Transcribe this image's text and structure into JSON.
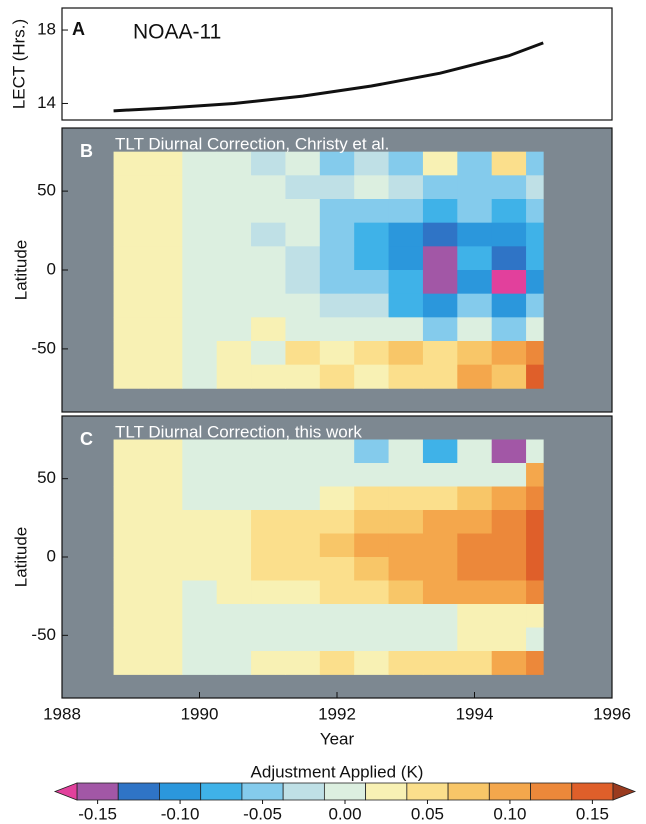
{
  "chart_data": [
    {
      "type": "line",
      "panel_label": "A",
      "annotation": "NOAA-11",
      "ylabel": "LECT (Hrs.)",
      "x": [
        1988.75,
        1989.5,
        1990.5,
        1991.5,
        1992.5,
        1993.5,
        1994.5,
        1995
      ],
      "values": [
        13.6,
        13.75,
        14.0,
        14.4,
        14.95,
        15.65,
        16.6,
        17.3
      ],
      "color": "#111111",
      "xlim": [
        1988,
        1996
      ],
      "ylim": [
        13.1,
        19.2
      ],
      "yticks": [
        14,
        18
      ]
    },
    {
      "type": "heatmap",
      "panel_label": "B",
      "title": "TLT Diurnal Correction, Christy et al.",
      "ylabel": "Latitude",
      "xlim": [
        1988,
        1996
      ],
      "ylim": [
        -90,
        90
      ],
      "yticks": [
        -50,
        0,
        50
      ],
      "background": "#7d8891",
      "xbins": [
        1988.75,
        1989.25,
        1989.75,
        1990.25,
        1990.75,
        1991.25,
        1991.75,
        1992.25,
        1992.75,
        1993.25,
        1993.75,
        1994.25,
        1994.75,
        1995.0
      ],
      "ybins": [
        75,
        60,
        45,
        30,
        15,
        0,
        -15,
        -30,
        -45,
        -60,
        -75
      ],
      "values": [
        [
          0.02,
          0.02,
          0.0,
          0.0,
          -0.03,
          0.0,
          -0.04,
          -0.02,
          -0.05,
          0.02,
          -0.04,
          0.06,
          -0.05
        ],
        [
          0.02,
          0.02,
          0.0,
          0.0,
          0.0,
          -0.03,
          -0.02,
          0.0,
          -0.03,
          -0.05,
          -0.04,
          -0.05,
          -0.03
        ],
        [
          0.02,
          0.02,
          0.0,
          0.0,
          0.0,
          0.0,
          -0.05,
          -0.06,
          -0.05,
          -0.08,
          -0.06,
          -0.08,
          -0.06
        ],
        [
          0.02,
          0.02,
          0.0,
          0.0,
          -0.03,
          0.0,
          -0.06,
          -0.07,
          -0.09,
          -0.12,
          -0.09,
          -0.11,
          -0.08
        ],
        [
          0.02,
          0.02,
          0.0,
          0.0,
          0.0,
          -0.03,
          -0.05,
          -0.08,
          -0.09,
          -0.16,
          -0.07,
          -0.13,
          -0.08
        ],
        [
          0.02,
          0.02,
          0.0,
          0.0,
          0.0,
          -0.03,
          -0.04,
          -0.06,
          -0.08,
          -0.16,
          -0.09,
          -0.17,
          -0.09
        ],
        [
          0.02,
          0.02,
          0.0,
          0.0,
          0.0,
          0.0,
          -0.02,
          -0.03,
          -0.07,
          -0.09,
          -0.06,
          -0.09,
          -0.06
        ],
        [
          0.02,
          0.02,
          0.0,
          0.0,
          0.03,
          0.0,
          0.0,
          0.0,
          0.0,
          -0.04,
          0.0,
          -0.04,
          0.0
        ],
        [
          0.02,
          0.02,
          0.0,
          0.02,
          0.0,
          0.04,
          0.02,
          0.05,
          0.08,
          0.06,
          0.08,
          0.09,
          0.12
        ],
        [
          0.02,
          0.02,
          0.0,
          0.02,
          0.03,
          0.02,
          0.04,
          0.03,
          0.06,
          0.05,
          0.1,
          0.08,
          0.14
        ]
      ]
    },
    {
      "type": "heatmap",
      "panel_label": "C",
      "title": "TLT Diurnal Correction, this work",
      "ylabel": "Latitude",
      "xlabel": "Year",
      "xlim": [
        1988,
        1996
      ],
      "xticks": [
        1988,
        1990,
        1992,
        1994,
        1996
      ],
      "ylim": [
        -90,
        90
      ],
      "yticks": [
        -50,
        0,
        50
      ],
      "background": "#7d8891",
      "xbins": [
        1988.75,
        1989.25,
        1989.75,
        1990.25,
        1990.75,
        1991.25,
        1991.75,
        1992.25,
        1992.75,
        1993.25,
        1993.75,
        1994.25,
        1994.75,
        1995.0
      ],
      "ybins": [
        75,
        60,
        45,
        30,
        15,
        0,
        -15,
        -30,
        -45,
        -60,
        -75
      ],
      "values": [
        [
          0.02,
          0.02,
          0.0,
          0.0,
          0.0,
          0.0,
          0.0,
          -0.04,
          0.0,
          -0.07,
          0.0,
          -0.16,
          0.0
        ],
        [
          0.02,
          0.02,
          0.0,
          0.0,
          0.0,
          0.0,
          0.0,
          0.0,
          0.0,
          0.0,
          0.0,
          0.0,
          0.09
        ],
        [
          0.02,
          0.02,
          0.0,
          0.0,
          0.0,
          0.0,
          0.03,
          0.04,
          0.05,
          0.06,
          0.08,
          0.1,
          0.13
        ],
        [
          0.02,
          0.02,
          0.02,
          0.03,
          0.04,
          0.05,
          0.06,
          0.07,
          0.08,
          0.1,
          0.1,
          0.12,
          0.14
        ],
        [
          0.02,
          0.02,
          0.02,
          0.03,
          0.04,
          0.05,
          0.07,
          0.09,
          0.1,
          0.11,
          0.12,
          0.13,
          0.14
        ],
        [
          0.02,
          0.02,
          0.02,
          0.03,
          0.04,
          0.05,
          0.06,
          0.08,
          0.1,
          0.11,
          0.12,
          0.13,
          0.14
        ],
        [
          0.02,
          0.02,
          0.0,
          0.02,
          0.03,
          0.03,
          0.05,
          0.06,
          0.08,
          0.09,
          0.1,
          0.11,
          0.13
        ],
        [
          0.02,
          0.02,
          0.0,
          0.0,
          0.0,
          0.0,
          0.0,
          0.0,
          0.0,
          0.0,
          0.02,
          0.02,
          0.02
        ],
        [
          0.02,
          0.02,
          0.0,
          0.0,
          0.0,
          0.0,
          0.0,
          0.0,
          0.0,
          0.0,
          0.02,
          0.02,
          0.0
        ],
        [
          0.02,
          0.02,
          0.0,
          0.0,
          0.02,
          0.03,
          0.06,
          0.03,
          0.04,
          0.05,
          0.06,
          0.09,
          0.12
        ]
      ]
    },
    {
      "type": "colorbar",
      "title": "Adjustment Applied (K)",
      "levels": [
        -0.1625,
        -0.1375,
        -0.1125,
        -0.0875,
        -0.0625,
        -0.0375,
        -0.0125,
        0.0125,
        0.0375,
        0.0625,
        0.0875,
        0.1125,
        0.1375,
        0.1625
      ],
      "colors": [
        "#a257a6",
        "#2f74c6",
        "#2b97dc",
        "#3fb2e8",
        "#84cbec",
        "#bfe0e6",
        "#dcefe0",
        "#f8f1b4",
        "#fbdf8c",
        "#f8c668",
        "#f4a74c",
        "#ec883a",
        "#df5f2a"
      ],
      "under_color": "#e2409c",
      "over_color": "#9a3b1f",
      "xlim": [
        -0.1625,
        0.1625
      ],
      "xticks": [
        -0.15,
        {
          "value": -0.1,
          "label": "-0.10"
        },
        -0.05,
        {
          "value": 0,
          "label": "0.00"
        },
        0.05,
        {
          "value": 0.1,
          "label": "0.10"
        },
        0.15
      ]
    }
  ]
}
